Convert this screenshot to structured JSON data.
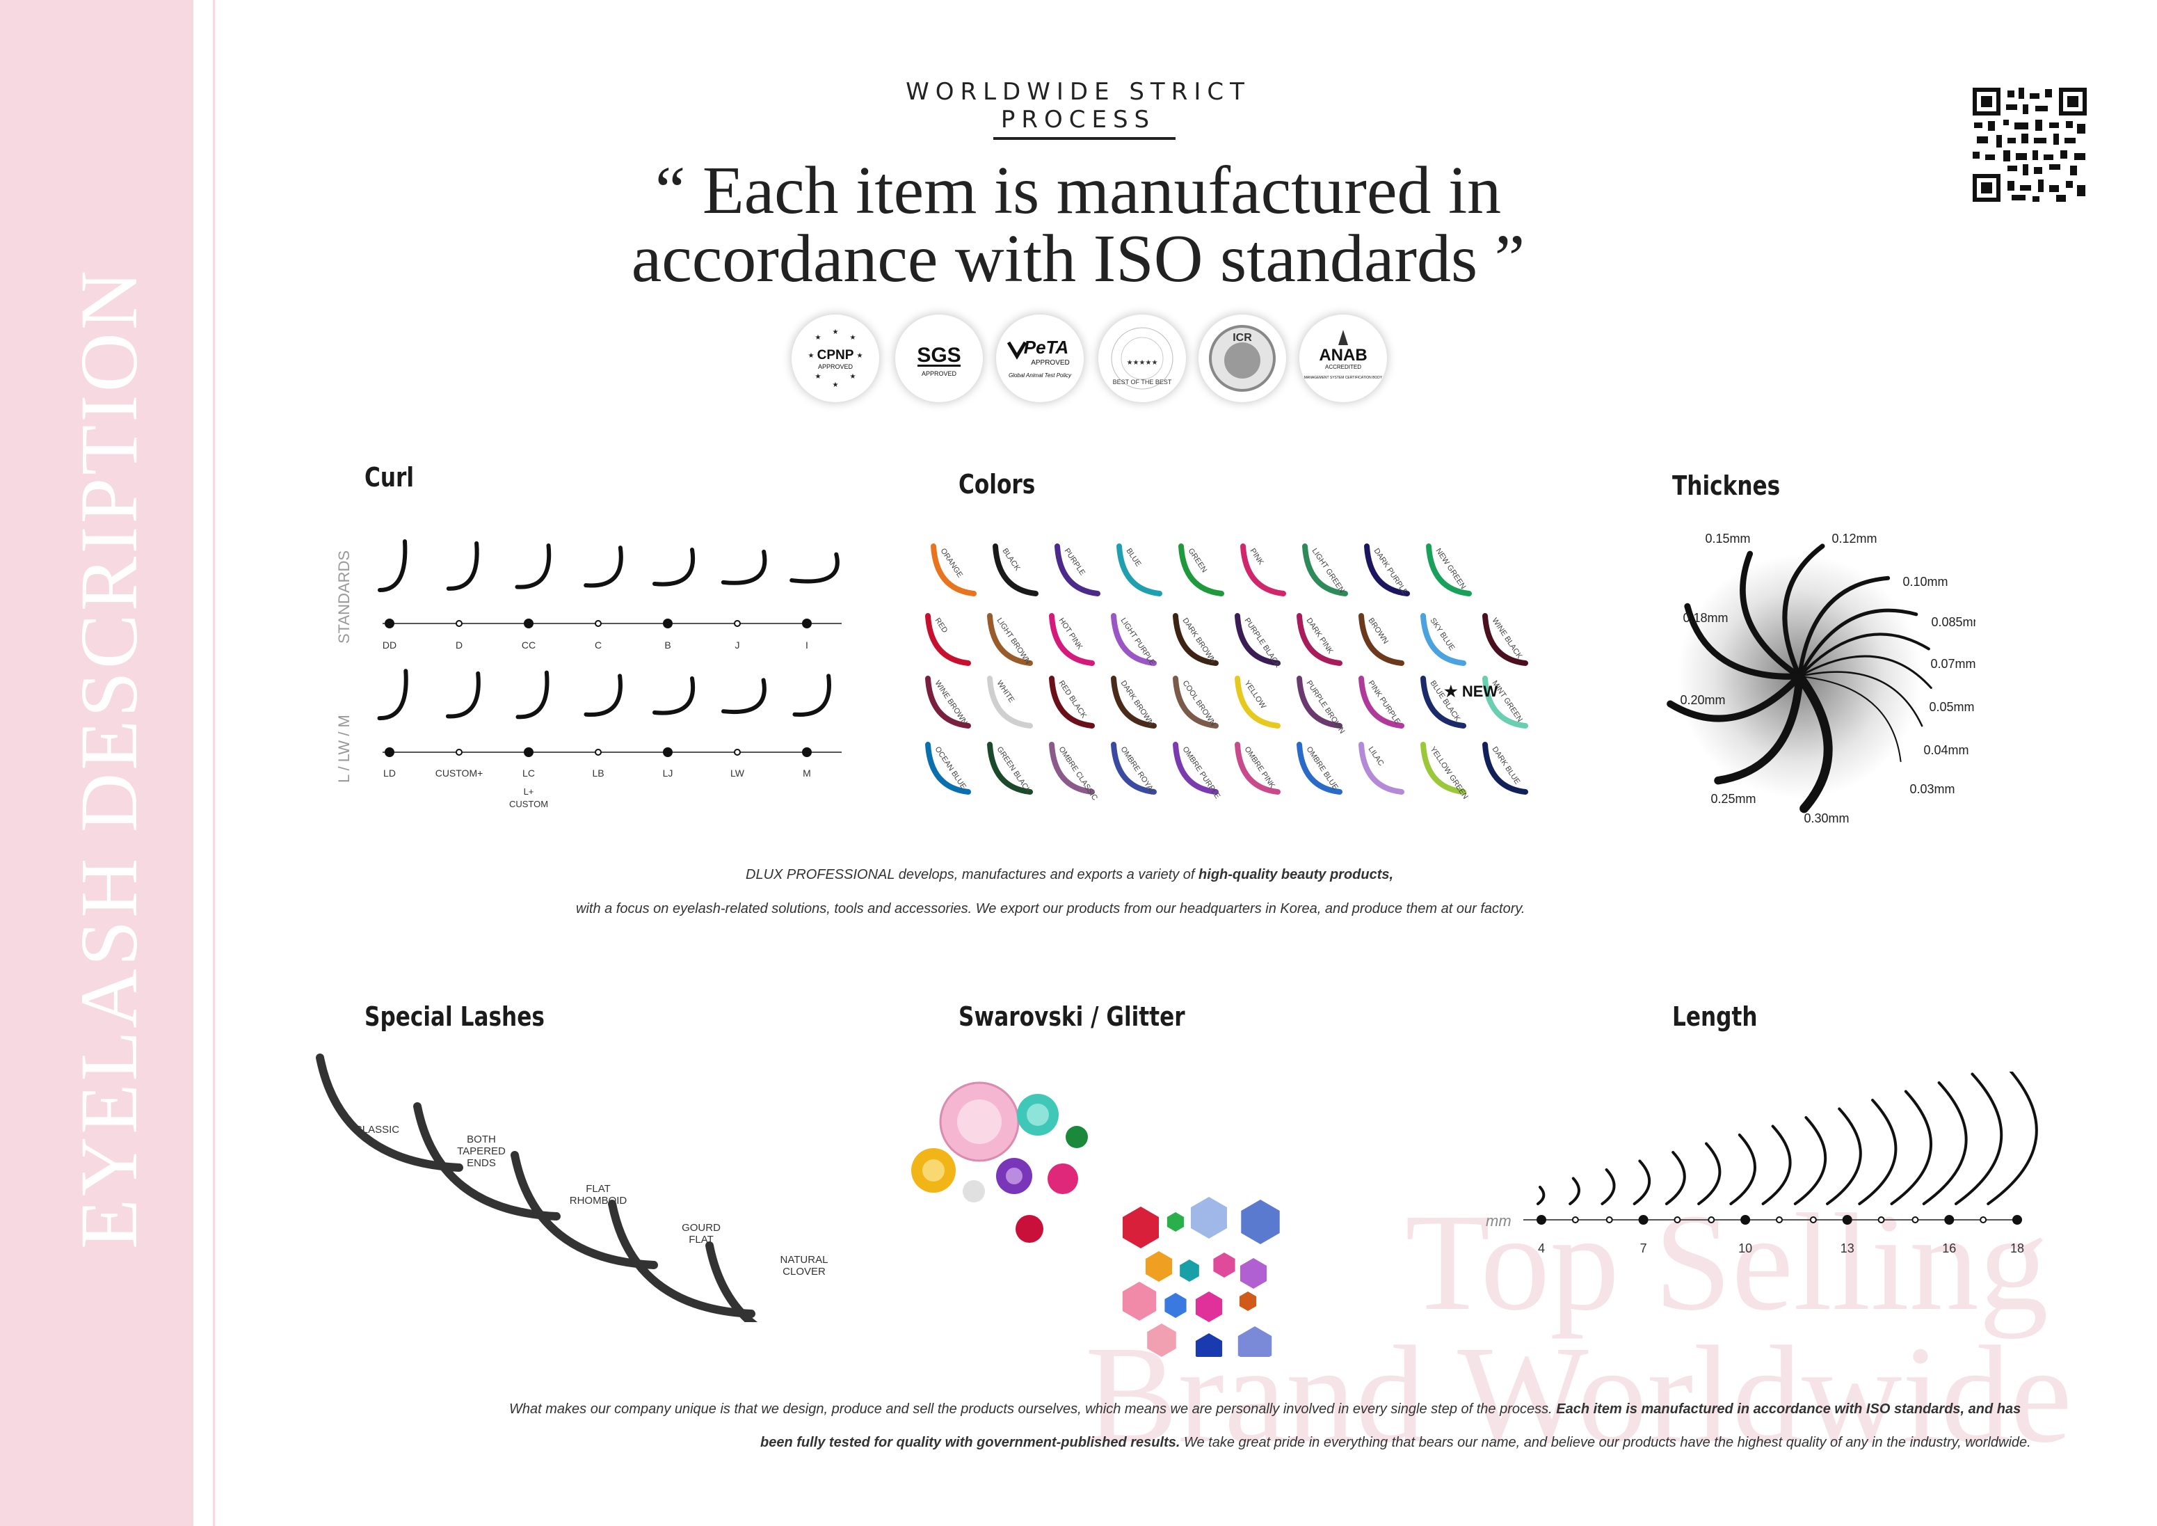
{
  "sidebar": {
    "title": "EYELASH DESCRIPTION"
  },
  "header": {
    "eyebrow": "WORLDWIDE STRICT PROCESS",
    "quote_line1": "“ Each item is manufactured in",
    "quote_line2": "accordance with ISO standards ”"
  },
  "badges": {
    "cpnp": {
      "name": "CPNP",
      "sub": "APPROVED"
    },
    "sgs": {
      "name": "SGS",
      "sub": "APPROVED"
    },
    "peta": {
      "name": "PeTA",
      "sub": "APPROVED",
      "note": "Global Animal Test Policy"
    },
    "best": {
      "ring": "BEST OF THE BEST",
      "center": "★★★★★"
    },
    "icr": {
      "name": "ICR"
    },
    "anab": {
      "name": "ANAB",
      "sub": "ACCREDITED",
      "note": "MANAGEMENT SYSTEM CERTIFICATION BODY"
    }
  },
  "sections": {
    "curl": "Curl",
    "colors": "Colors",
    "thickness": "Thicknes",
    "special": "Special Lashes",
    "swarovski": "Swarovski / Glitter",
    "length": "Length"
  },
  "curl": {
    "row1_label": "STANDARDS",
    "row2_label": "L / LW / M",
    "row1": [
      "DD",
      "D",
      "CC",
      "C",
      "B",
      "J",
      "I"
    ],
    "row2": [
      "LD",
      "CUSTOM+",
      "LC",
      "LB",
      "LJ",
      "LW",
      "M"
    ],
    "lc_extra1": "L+",
    "lc_extra2": "CUSTOM"
  },
  "colors": {
    "new_label": "★ NEW",
    "rows": [
      [
        {
          "name": "ORANGE",
          "hex": "#e8741e"
        },
        {
          "name": "BLACK",
          "hex": "#1a1a1a"
        },
        {
          "name": "PURPLE",
          "hex": "#4b2a8c"
        },
        {
          "name": "BLUE",
          "hex": "#1f9fb0"
        },
        {
          "name": "GREEN",
          "hex": "#1e9a3c"
        },
        {
          "name": "PINK",
          "hex": "#d1266b"
        },
        {
          "name": "LIGHT GREEN",
          "hex": "#2f8a5a"
        },
        {
          "name": "DARK PURPLE",
          "hex": "#1c1560"
        },
        {
          "name": "NEW GREEN",
          "hex": "#19a05a"
        }
      ],
      [
        {
          "name": "RED",
          "hex": "#c8102e"
        },
        {
          "name": "LIGHT BROWN",
          "hex": "#9a5b2a"
        },
        {
          "name": "HOT PINK",
          "hex": "#d61a7b"
        },
        {
          "name": "LIGHT PURPLE",
          "hex": "#9a55c7"
        },
        {
          "name": "DARK BROWN",
          "hex": "#3d2314"
        },
        {
          "name": "PURPLE BLACK",
          "hex": "#3a1d55"
        },
        {
          "name": "DARK PINK",
          "hex": "#a81c5c"
        },
        {
          "name": "BROWN",
          "hex": "#6b3a1c"
        },
        {
          "name": "SKY BLUE",
          "hex": "#4aa3df"
        },
        {
          "name": "WINE BLACK",
          "hex": "#4a1020"
        }
      ],
      [
        {
          "name": "WINE BROWN",
          "hex": "#7a1f3d"
        },
        {
          "name": "WHITE",
          "hex": "#cfcfcf"
        },
        {
          "name": "RED BLACK",
          "hex": "#6b0f1a"
        },
        {
          "name": "DARK BROWN",
          "hex": "#4a2a18"
        },
        {
          "name": "COOL BROWN",
          "hex": "#7a5a48"
        },
        {
          "name": "YELLOW",
          "hex": "#e6c81e"
        },
        {
          "name": "PURPLE BROWN",
          "hex": "#6a3a6e"
        },
        {
          "name": "PINK PURPLE",
          "hex": "#b03a9a"
        },
        {
          "name": "BLUE BLACK",
          "hex": "#1a2a6b"
        },
        {
          "name": "MINT GREEN",
          "hex": "#6acfb0"
        }
      ],
      [
        {
          "name": "OCEAN BLUE",
          "hex": "#0a6fae"
        },
        {
          "name": "GREEN BLACK",
          "hex": "#1a4a2a"
        },
        {
          "name": "OMBRE CLASSIC",
          "hex": "#8a5a8a"
        },
        {
          "name": "OMBRE ROYAL",
          "hex": "#3a4aa0"
        },
        {
          "name": "OMBRE PURPLE",
          "hex": "#7a3ab0"
        },
        {
          "name": "OMBRE PINK",
          "hex": "#c84a8a"
        },
        {
          "name": "OMBRE BLUE",
          "hex": "#2a6ac8"
        },
        {
          "name": "LILAC",
          "hex": "#b48ad8"
        },
        {
          "name": "YELLOW GREEN",
          "hex": "#9ac83a"
        },
        {
          "name": "DARK BLUE",
          "hex": "#12205a"
        }
      ]
    ]
  },
  "thickness": {
    "labels": [
      "0.15mm",
      "0.12mm",
      "0.10mm",
      "0.085mm",
      "0.07mm",
      "0.05mm",
      "0.04mm",
      "0.03mm",
      "0.30mm",
      "0.25mm",
      "0.20mm",
      "0.18mm"
    ]
  },
  "intro": {
    "line1_pre": "DLUX PROFESSIONAL develops, manufactures and exports a variety of ",
    "line1_bold": "high-quality beauty products,",
    "line2": "with a focus on eyelash-related solutions, tools and accessories. We export our products from our headquarters in Korea, and produce them at our factory."
  },
  "special": {
    "items": [
      "CLASSIC",
      "BOTH TAPERED ENDS",
      "FLAT RHOMBOID",
      "GOURD FLAT",
      "NATURAL CLOVER"
    ]
  },
  "length": {
    "unit": "mm",
    "tick_labels": [
      "4",
      "7",
      "10",
      "13",
      "16",
      "18"
    ],
    "min_mm": 4,
    "max_mm": 18
  },
  "watermark": {
    "line1": "Top Selling",
    "line2": "Brand Worldwide"
  },
  "footer": {
    "line1_pre": "What makes our  company unique is that we design, produce and sell the products ourselves, which means we are personally involved in every single step of the process. ",
    "line1_bold": "Each item is manufactured in accordance with ISO standards, and has",
    "line2_bold": "been fully tested for quality with government-published results.",
    "line2_post": " We take great pride in everything that bears our name, and believe our products have the highest quality of any in the industry, worldwide."
  },
  "theme": {
    "pink": "#f7d9e1",
    "ink": "#222222"
  }
}
